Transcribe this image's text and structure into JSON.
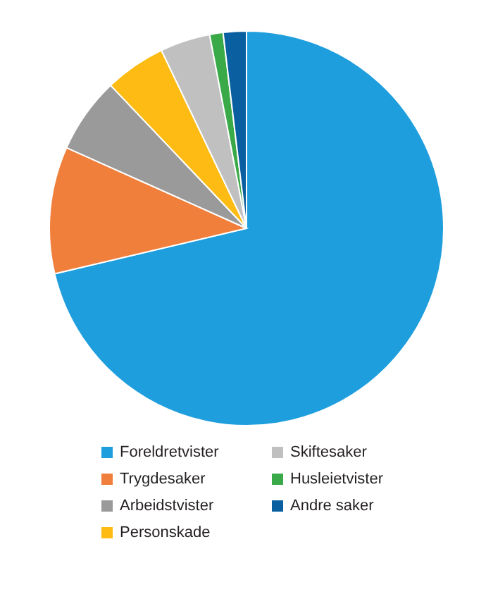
{
  "chart_data": {
    "type": "pie",
    "categories": [
      "Foreldretvister",
      "Trygdesaker",
      "Arbeidstvister",
      "Personskade",
      "Skiftesaker",
      "Husleietvister",
      "Andre saker"
    ],
    "values": [
      71.3,
      10.4,
      6.2,
      5.0,
      4.1,
      1.1,
      1.9
    ],
    "colors": [
      "#1f9ede",
      "#f07f3c",
      "#9a9a9a",
      "#fdbb13",
      "#c0c0c0",
      "#3aaa48",
      "#0a5fa0"
    ],
    "legend": "bottom"
  }
}
